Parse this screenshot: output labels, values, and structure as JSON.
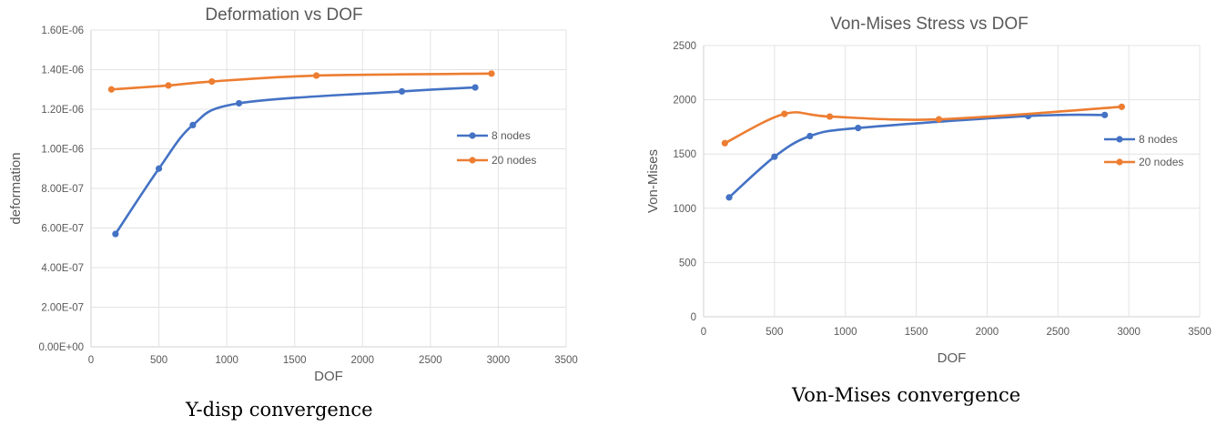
{
  "chart_data": [
    {
      "type": "line",
      "title": "Deformation vs DOF",
      "xlabel": "DOF",
      "ylabel": "deformation",
      "xlim": [
        0,
        3500
      ],
      "ylim": [
        0,
        1.6e-06
      ],
      "xticks": [
        0,
        500,
        1000,
        1500,
        2000,
        2500,
        3000,
        3500
      ],
      "xtick_labels": [
        "0",
        "500",
        "1000",
        "1500",
        "2000",
        "2500",
        "3000",
        "3500"
      ],
      "yticks": [
        0,
        2e-07,
        4e-07,
        6e-07,
        8e-07,
        1e-06,
        1.2e-06,
        1.4e-06,
        1.6e-06
      ],
      "ytick_labels": [
        "0.00E+00",
        "2.00E-07",
        "4.00E-07",
        "6.00E-07",
        "8.00E-07",
        "1.00E-06",
        "1.20E-06",
        "1.40E-06",
        "1.60E-06"
      ],
      "grid": true,
      "legend_position": "right",
      "series": [
        {
          "name": "8 nodes",
          "color": "#4472C4",
          "x": [
            180,
            500,
            750,
            1090,
            2290,
            2830
          ],
          "y": [
            5.7e-07,
            9e-07,
            1.12e-06,
            1.23e-06,
            1.29e-06,
            1.31e-06
          ]
        },
        {
          "name": "20 nodes",
          "color": "#ED7D31",
          "x": [
            150,
            570,
            890,
            1660,
            2950
          ],
          "y": [
            1.3e-06,
            1.32e-06,
            1.34e-06,
            1.37e-06,
            1.38e-06
          ]
        }
      ],
      "caption": "Y-disp convergence"
    },
    {
      "type": "line",
      "title": "Von-Mises Stress vs DOF",
      "xlabel": "DOF",
      "ylabel": "Von-Mises",
      "xlim": [
        0,
        3500
      ],
      "ylim": [
        0,
        2500
      ],
      "xticks": [
        0,
        500,
        1000,
        1500,
        2000,
        2500,
        3000,
        3500
      ],
      "xtick_labels": [
        "0",
        "500",
        "1000",
        "1500",
        "2000",
        "2500",
        "3000",
        "3500"
      ],
      "yticks": [
        0,
        500,
        1000,
        1500,
        2000,
        2500
      ],
      "ytick_labels": [
        "0",
        "500",
        "1000",
        "1500",
        "2000",
        "2500"
      ],
      "grid": true,
      "legend_position": "right",
      "series": [
        {
          "name": "8 nodes",
          "color": "#4472C4",
          "x": [
            180,
            500,
            750,
            1090,
            2290,
            2830
          ],
          "y": [
            1100,
            1475,
            1665,
            1740,
            1850,
            1860
          ]
        },
        {
          "name": "20 nodes",
          "color": "#ED7D31",
          "x": [
            150,
            570,
            890,
            1660,
            2950
          ],
          "y": [
            1600,
            1870,
            1845,
            1820,
            1935
          ]
        }
      ],
      "caption": "Von-Mises convergence"
    }
  ]
}
